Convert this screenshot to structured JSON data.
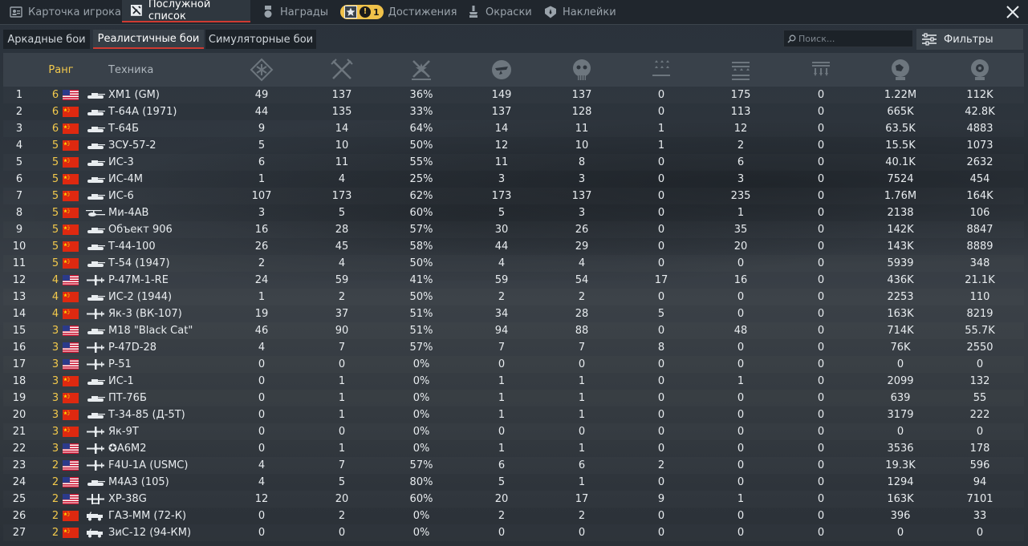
{
  "top_tabs": [
    {
      "label": "Карточка игрока",
      "icon": "player-card-icon",
      "active": false
    },
    {
      "label": "Послужной список",
      "icon": "service-record-icon",
      "active": true
    },
    {
      "label": "Награды",
      "icon": "medal-icon",
      "active": false
    },
    {
      "label": "Достижения",
      "icon": "achievement-icon",
      "active": false,
      "badge": "1"
    },
    {
      "label": "Окраски",
      "icon": "paint-icon",
      "active": false
    },
    {
      "label": "Наклейки",
      "icon": "decal-icon",
      "active": false
    }
  ],
  "mode_tabs": [
    {
      "label": "Аркадные бои",
      "active": false
    },
    {
      "label": "Реалистичные бои",
      "active": true
    },
    {
      "label": "Симуляторные бои",
      "active": false
    }
  ],
  "search": {
    "placeholder": "Поиск..."
  },
  "filters_label": "Фильтры",
  "colors": {
    "accent": "#cf3b32",
    "rank": "#f2c94c"
  },
  "table": {
    "headers": {
      "rank": "Ранг",
      "vehicle": "Техника",
      "stat_icons": [
        "battles-icon",
        "respawns-icon",
        "victories-icon",
        "air-kills-icon",
        "ground-kills-icon",
        "naval-kills-icon",
        "air-ground-kills-icon",
        "ship-kills-icon",
        "activity-icon",
        "research-icon"
      ]
    },
    "rows": [
      {
        "num": "1",
        "rank": "6",
        "flag": "usa",
        "type": "tank",
        "name": "XM1 (GM)",
        "stats": [
          "49",
          "137",
          "36%",
          "149",
          "137",
          "0",
          "175",
          "0",
          "1.22M",
          "112K"
        ]
      },
      {
        "num": "2",
        "rank": "6",
        "flag": "china",
        "type": "tank",
        "name": "Т-64А (1971)",
        "stats": [
          "44",
          "135",
          "33%",
          "137",
          "128",
          "0",
          "113",
          "0",
          "665K",
          "42.8K"
        ]
      },
      {
        "num": "3",
        "rank": "6",
        "flag": "china",
        "type": "tank",
        "name": "Т-64Б",
        "stats": [
          "9",
          "14",
          "64%",
          "14",
          "11",
          "1",
          "12",
          "0",
          "63.5K",
          "4883"
        ]
      },
      {
        "num": "4",
        "rank": "5",
        "flag": "china",
        "type": "tank",
        "name": "ЗСУ-57-2",
        "stats": [
          "5",
          "10",
          "50%",
          "12",
          "10",
          "1",
          "2",
          "0",
          "15.5K",
          "1073"
        ]
      },
      {
        "num": "5",
        "rank": "5",
        "flag": "china",
        "type": "tank",
        "name": "ИС-3",
        "stats": [
          "6",
          "11",
          "55%",
          "11",
          "8",
          "0",
          "6",
          "0",
          "40.1K",
          "2632"
        ]
      },
      {
        "num": "6",
        "rank": "5",
        "flag": "china",
        "type": "tank",
        "name": "ИС-4М",
        "stats": [
          "1",
          "4",
          "25%",
          "3",
          "3",
          "0",
          "3",
          "0",
          "7524",
          "454"
        ]
      },
      {
        "num": "7",
        "rank": "5",
        "flag": "china",
        "type": "tank",
        "name": "ИС-6",
        "stats": [
          "107",
          "173",
          "62%",
          "173",
          "137",
          "0",
          "235",
          "0",
          "1.76M",
          "164K"
        ]
      },
      {
        "num": "8",
        "rank": "5",
        "flag": "china",
        "type": "heli",
        "name": "Ми-4АВ",
        "stats": [
          "3",
          "5",
          "60%",
          "5",
          "3",
          "0",
          "1",
          "0",
          "2138",
          "106"
        ]
      },
      {
        "num": "9",
        "rank": "5",
        "flag": "china",
        "type": "tank",
        "name": "Объект 906",
        "stats": [
          "16",
          "28",
          "57%",
          "30",
          "26",
          "0",
          "35",
          "0",
          "142K",
          "8847"
        ]
      },
      {
        "num": "10",
        "rank": "5",
        "flag": "china",
        "type": "tank",
        "name": "Т-44-100",
        "stats": [
          "26",
          "45",
          "58%",
          "44",
          "29",
          "0",
          "20",
          "0",
          "143K",
          "8889"
        ]
      },
      {
        "num": "11",
        "rank": "5",
        "flag": "china",
        "type": "tank",
        "name": "Т-54 (1947)",
        "stats": [
          "2",
          "4",
          "50%",
          "4",
          "4",
          "0",
          "0",
          "0",
          "5939",
          "348"
        ]
      },
      {
        "num": "12",
        "rank": "4",
        "flag": "usa",
        "type": "plane",
        "name": "P-47M-1-RE",
        "stats": [
          "24",
          "59",
          "41%",
          "59",
          "54",
          "17",
          "16",
          "0",
          "436K",
          "21.1K"
        ]
      },
      {
        "num": "13",
        "rank": "4",
        "flag": "china",
        "type": "tank",
        "name": "ИС-2 (1944)",
        "stats": [
          "1",
          "2",
          "50%",
          "2",
          "2",
          "0",
          "0",
          "0",
          "2253",
          "110"
        ]
      },
      {
        "num": "14",
        "rank": "4",
        "flag": "china",
        "type": "plane",
        "name": "Як-3 (ВК-107)",
        "stats": [
          "19",
          "37",
          "51%",
          "34",
          "28",
          "5",
          "0",
          "0",
          "163K",
          "8219"
        ]
      },
      {
        "num": "15",
        "rank": "3",
        "flag": "usa",
        "type": "tank",
        "name": "M18 \"Black Cat\"",
        "stats": [
          "46",
          "90",
          "51%",
          "94",
          "88",
          "0",
          "48",
          "0",
          "714K",
          "55.7K"
        ]
      },
      {
        "num": "16",
        "rank": "3",
        "flag": "usa",
        "type": "plane",
        "name": "P-47D-28",
        "stats": [
          "4",
          "7",
          "57%",
          "7",
          "7",
          "8",
          "0",
          "0",
          "76K",
          "2550"
        ]
      },
      {
        "num": "17",
        "rank": "3",
        "flag": "usa",
        "type": "plane",
        "name": "P-51",
        "stats": [
          "0",
          "0",
          "0%",
          "0",
          "0",
          "0",
          "0",
          "0",
          "0",
          "0"
        ]
      },
      {
        "num": "18",
        "rank": "3",
        "flag": "china",
        "type": "tank",
        "name": "ИС-1",
        "stats": [
          "0",
          "1",
          "0%",
          "1",
          "1",
          "0",
          "1",
          "0",
          "2099",
          "132"
        ]
      },
      {
        "num": "19",
        "rank": "3",
        "flag": "china",
        "type": "tank",
        "name": "ПТ-76Б",
        "stats": [
          "0",
          "1",
          "0%",
          "1",
          "1",
          "0",
          "0",
          "0",
          "639",
          "55"
        ]
      },
      {
        "num": "20",
        "rank": "3",
        "flag": "china",
        "type": "tank",
        "name": "Т-34-85 (Д-5Т)",
        "stats": [
          "0",
          "1",
          "0%",
          "1",
          "1",
          "0",
          "0",
          "0",
          "3179",
          "222"
        ]
      },
      {
        "num": "21",
        "rank": "3",
        "flag": "china",
        "type": "plane",
        "name": "Як-9Т",
        "stats": [
          "0",
          "0",
          "0%",
          "0",
          "0",
          "0",
          "0",
          "0",
          "0",
          "0"
        ]
      },
      {
        "num": "22",
        "rank": "3",
        "flag": "usa",
        "type": "plane",
        "name": "✪A6M2",
        "stats": [
          "0",
          "1",
          "0%",
          "1",
          "1",
          "0",
          "0",
          "0",
          "3536",
          "178"
        ]
      },
      {
        "num": "23",
        "rank": "2",
        "flag": "usa",
        "type": "plane",
        "name": "F4U-1A (USMC)",
        "stats": [
          "4",
          "7",
          "57%",
          "6",
          "6",
          "2",
          "0",
          "0",
          "19.3K",
          "596"
        ]
      },
      {
        "num": "24",
        "rank": "2",
        "flag": "usa",
        "type": "tank",
        "name": "M4A3 (105)",
        "stats": [
          "4",
          "5",
          "80%",
          "5",
          "1",
          "0",
          "0",
          "0",
          "1294",
          "94"
        ]
      },
      {
        "num": "25",
        "rank": "2",
        "flag": "usa",
        "type": "twin",
        "name": "XP-38G",
        "stats": [
          "12",
          "20",
          "60%",
          "20",
          "17",
          "9",
          "1",
          "0",
          "163K",
          "7101"
        ]
      },
      {
        "num": "26",
        "rank": "2",
        "flag": "china",
        "type": "truck",
        "name": "ГАЗ-ММ (72-К)",
        "stats": [
          "0",
          "2",
          "0%",
          "2",
          "2",
          "0",
          "0",
          "0",
          "396",
          "33"
        ]
      },
      {
        "num": "27",
        "rank": "2",
        "flag": "china",
        "type": "truck",
        "name": "ЗиС-12 (94-КМ)",
        "stats": [
          "0",
          "0",
          "0%",
          "0",
          "0",
          "0",
          "0",
          "0",
          "0",
          "0"
        ]
      }
    ]
  }
}
